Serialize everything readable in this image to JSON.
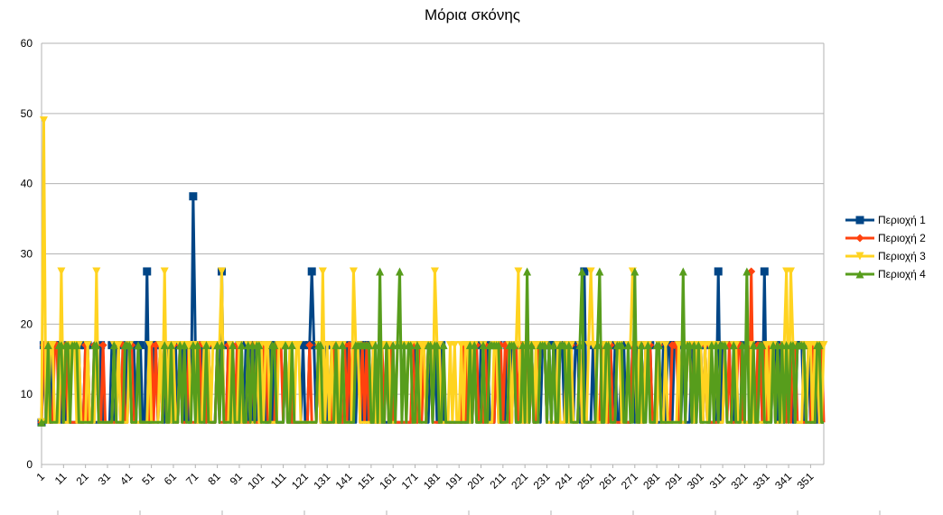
{
  "chart_data": {
    "type": "line",
    "title": "Μόρια σκόνης",
    "xlabel": "",
    "ylabel": "",
    "ylim": [
      0,
      60
    ],
    "yticks": [
      0,
      10,
      20,
      30,
      40,
      50,
      60
    ],
    "xlim": [
      1,
      357
    ],
    "xticks": [
      1,
      11,
      21,
      31,
      41,
      51,
      61,
      71,
      81,
      91,
      101,
      111,
      121,
      131,
      141,
      151,
      161,
      171,
      181,
      191,
      201,
      211,
      221,
      231,
      241,
      251,
      261,
      271,
      281,
      291,
      301,
      311,
      321,
      331,
      341,
      351
    ],
    "grid": true,
    "legend_position": "right",
    "series": [
      {
        "name": "Περιοχή 1",
        "color": "#004586",
        "marker": "square",
        "base": 6,
        "default_high": 17,
        "period": 4,
        "phase": 0,
        "spikes": [
          [
            49,
            27.5
          ],
          [
            70,
            38.2
          ],
          [
            83,
            27.5
          ],
          [
            124,
            27.5
          ],
          [
            248,
            27.5
          ],
          [
            309,
            27.5
          ],
          [
            330,
            27.5
          ]
        ]
      },
      {
        "name": "Περιοχή 2",
        "color": "#ff420e",
        "marker": "diamond",
        "base": 6,
        "default_high": 17,
        "period": 5,
        "phase": 1,
        "spikes": [
          [
            324,
            27.5
          ]
        ]
      },
      {
        "name": "Περιοχή 3",
        "color": "#ffd320",
        "marker": "triangle-down",
        "base": 6,
        "default_high": 17,
        "period": 4,
        "phase": 2,
        "spikes": [
          [
            2,
            49
          ],
          [
            10,
            27.5
          ],
          [
            26,
            27.5
          ],
          [
            57,
            27.5
          ],
          [
            83,
            27.5
          ],
          [
            129,
            27.5
          ],
          [
            143,
            27.5
          ],
          [
            180,
            27.5
          ],
          [
            218,
            27.5
          ],
          [
            251,
            27.5
          ],
          [
            270,
            27.5
          ],
          [
            340,
            27.5
          ],
          [
            342,
            27.5
          ]
        ]
      },
      {
        "name": "Περιοχή 4",
        "color": "#579d1c",
        "marker": "triangle-up",
        "base": 6,
        "default_high": 17,
        "period": 5,
        "phase": 3,
        "spikes": [
          [
            155,
            27.5
          ],
          [
            164,
            27.5
          ],
          [
            222,
            27.5
          ],
          [
            247,
            27.5
          ],
          [
            255,
            27.5
          ],
          [
            271,
            27.5
          ],
          [
            293,
            27.5
          ],
          [
            322,
            27.5
          ]
        ]
      }
    ]
  }
}
